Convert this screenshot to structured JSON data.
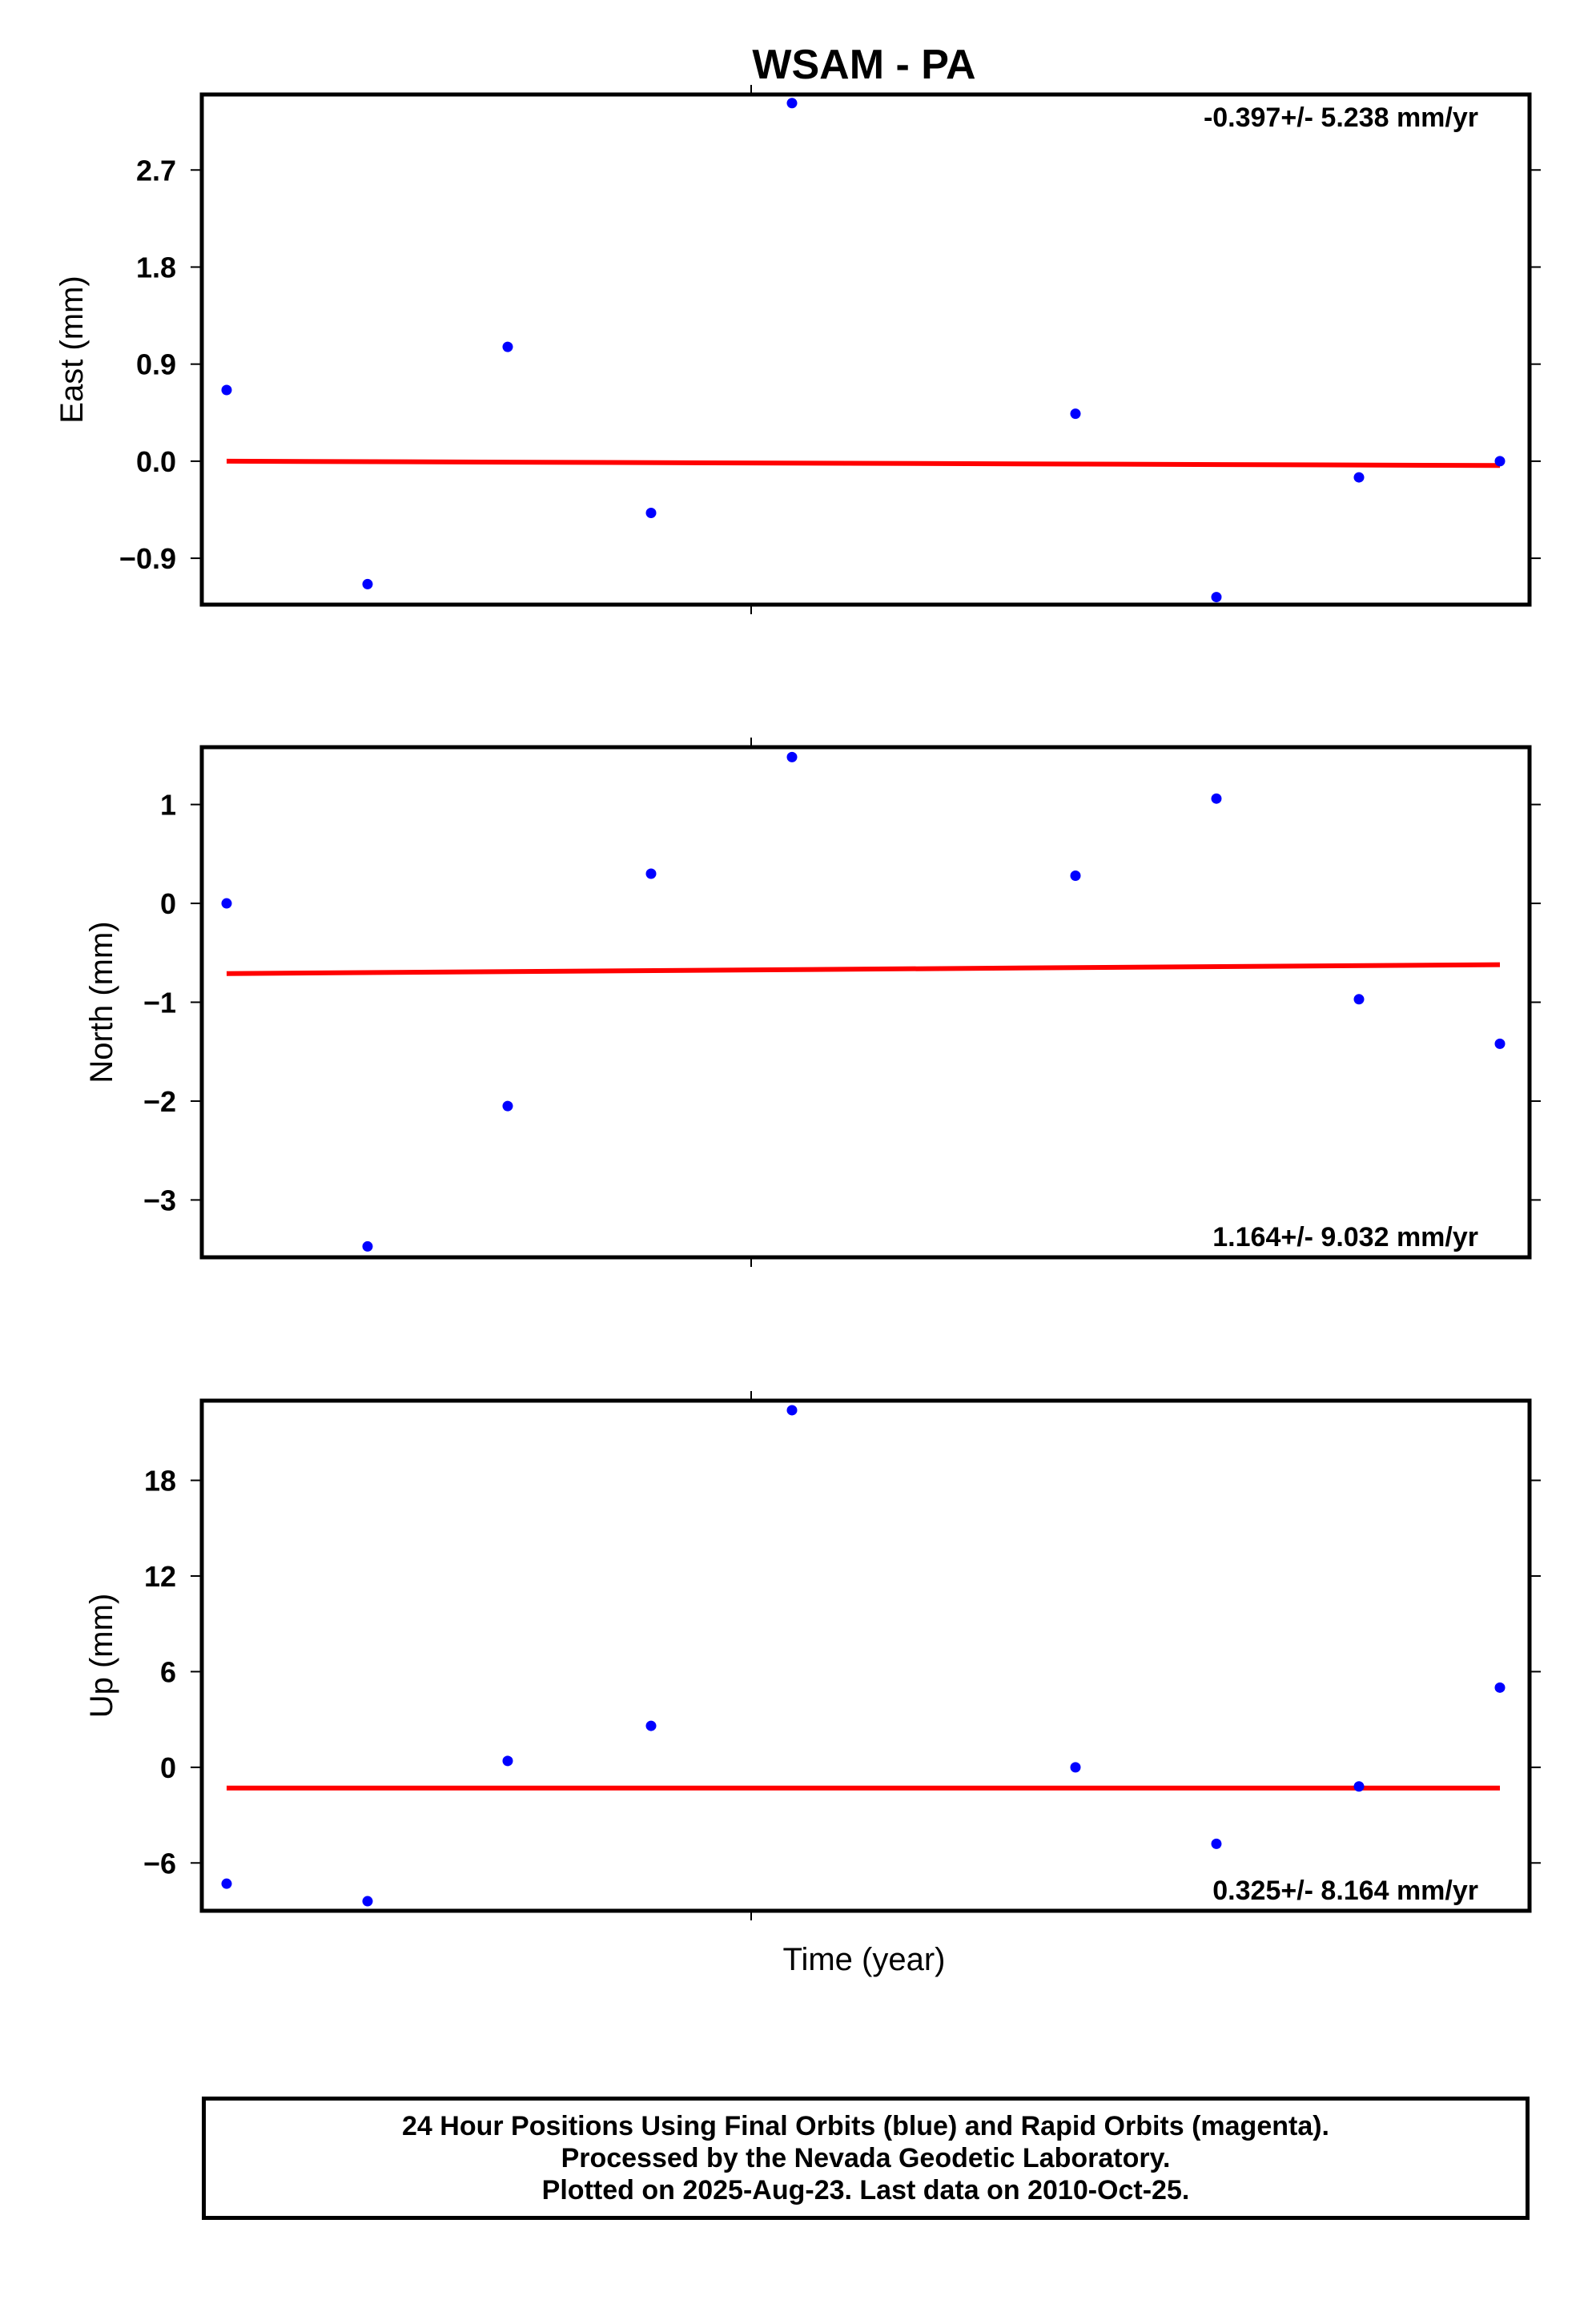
{
  "chart_data": {
    "type": "scatter",
    "title": "WSAM - PA",
    "xlabel": "Time (year)",
    "point_color": "#0000ff",
    "trend_color": "#ff0000",
    "panels": [
      {
        "id": "east",
        "ylabel": "East (mm)",
        "ylim": [
          -1.33,
          3.4
        ],
        "yticks": [
          2.7,
          1.8,
          0.9,
          0.0,
          -0.9
        ],
        "ytick_labels": [
          "2.7",
          "1.8",
          "0.9",
          "0.0",
          "−0.9"
        ],
        "points": [
          0.66,
          -1.14,
          1.06,
          -0.48,
          3.32,
          0.44,
          -1.26,
          -0.15,
          0.0
        ],
        "trend": [
          0.0,
          -0.04
        ],
        "rate_label": "-0.397+/- 5.238 mm/yr",
        "rate_position": "top-right"
      },
      {
        "id": "north",
        "ylabel": "North (mm)",
        "ylim": [
          -3.58,
          1.58
        ],
        "yticks": [
          1,
          0,
          -1,
          -2,
          -3
        ],
        "ytick_labels": [
          "1",
          "0",
          "−1",
          "−2",
          "−3"
        ],
        "points": [
          0.0,
          -3.47,
          -2.05,
          0.3,
          1.48,
          0.28,
          1.06,
          -0.97,
          -1.42
        ],
        "trend": [
          -0.71,
          -0.62
        ],
        "rate_label": "1.164+/- 9.032 mm/yr",
        "rate_position": "bottom-right"
      },
      {
        "id": "up",
        "ylabel": "Up (mm)",
        "ylim": [
          -9.0,
          23.0
        ],
        "yticks": [
          18,
          12,
          6,
          0,
          -6
        ],
        "ytick_labels": [
          "18",
          "12",
          "6",
          "0",
          "−6"
        ],
        "points": [
          -7.3,
          -8.4,
          0.4,
          2.6,
          22.4,
          0.0,
          -4.8,
          -1.2,
          5.0
        ],
        "trend": [
          -1.3,
          -1.3
        ],
        "rate_label": "0.325+/- 8.164 mm/yr",
        "rate_position": "bottom-right"
      }
    ]
  },
  "caption": {
    "line1": "24 Hour Positions Using Final Orbits (blue) and Rapid Orbits (magenta).",
    "line2": "Processed by the Nevada Geodetic Laboratory.",
    "line3": "Plotted on 2025-Aug-23. Last data on 2010-Oct-25."
  }
}
